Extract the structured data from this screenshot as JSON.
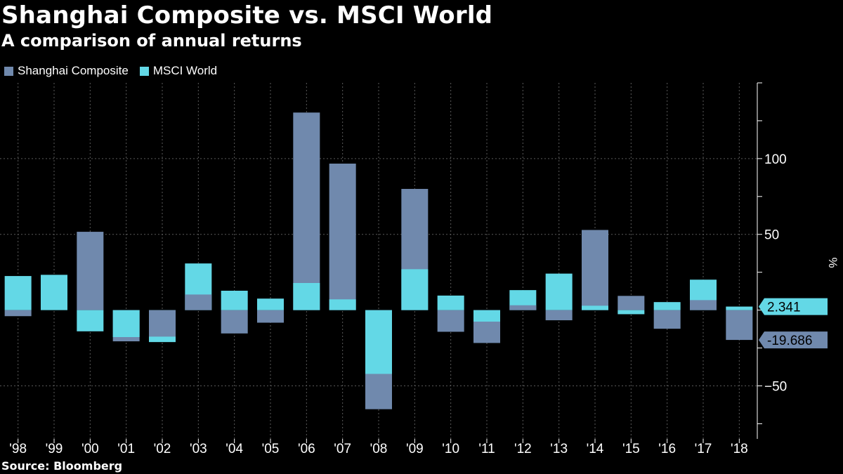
{
  "title": "Shanghai Composite vs. MSCI World",
  "subtitle": "A comparison of annual returns",
  "source": "Source: Bloomberg",
  "colors": {
    "background": "#000000",
    "shanghai": "#7089ad",
    "msci": "#63d8e6",
    "grid": "#5a5a5a",
    "text": "#ffffff"
  },
  "chart_data": {
    "type": "bar",
    "categories": [
      "'98",
      "'99",
      "'00",
      "'01",
      "'02",
      "'03",
      "'04",
      "'05",
      "'06",
      "'07",
      "'08",
      "'09",
      "'10",
      "'11",
      "'12",
      "'13",
      "'14",
      "'15",
      "'16",
      "'17",
      "'18"
    ],
    "series": [
      {
        "name": "Shanghai Composite",
        "color": "#7089ad",
        "values": [
          -4.0,
          0.0,
          51.7,
          -20.6,
          -17.5,
          10.3,
          -15.4,
          -8.3,
          130.4,
          96.7,
          -65.4,
          80.0,
          -14.3,
          -21.7,
          3.2,
          -6.7,
          52.9,
          9.4,
          -12.3,
          6.6,
          -19.686
        ]
      },
      {
        "name": "MSCI World",
        "color": "#63d8e6",
        "values": [
          22.5,
          23.3,
          -14.0,
          -17.8,
          -21.1,
          30.8,
          12.8,
          7.6,
          17.9,
          7.1,
          -42.1,
          27.0,
          9.6,
          -7.6,
          13.2,
          24.1,
          2.9,
          -2.7,
          5.3,
          20.1,
          2.341
        ]
      }
    ],
    "xlabel": "",
    "ylabel": "%",
    "ylim": [
      -85,
      150
    ],
    "yticks": [
      -50,
      50,
      100
    ],
    "grid": true,
    "legend": "top-left",
    "axis_side": "right",
    "callouts": [
      {
        "series": "MSCI World",
        "label": "2.341"
      },
      {
        "series": "Shanghai Composite",
        "label": "-19.686"
      }
    ]
  }
}
